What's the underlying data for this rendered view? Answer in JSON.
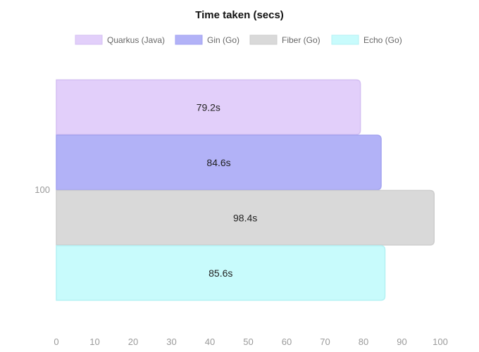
{
  "chart_data": {
    "type": "bar",
    "orientation": "horizontal",
    "title": "Time taken (secs)",
    "categories": [
      "100"
    ],
    "series": [
      {
        "name": "Quarkus (Java)",
        "values": [
          79.2
        ],
        "label": "79.2s",
        "fill": "#e2cffa",
        "stroke": "#d4bff2"
      },
      {
        "name": "Gin (Go)",
        "values": [
          84.6
        ],
        "label": "84.6s",
        "fill": "#b2b2f7",
        "stroke": "#a3a3f0"
      },
      {
        "name": "Fiber (Go)",
        "values": [
          98.4
        ],
        "label": "98.4s",
        "fill": "#d9d9d9",
        "stroke": "#cdcdcd"
      },
      {
        "name": "Echo (Go)",
        "values": [
          85.6
        ],
        "label": "85.6s",
        "fill": "#c8fbfc",
        "stroke": "#b3f1f3"
      }
    ],
    "x_ticks": [
      "0",
      "10",
      "20",
      "30",
      "40",
      "50",
      "60",
      "70",
      "80",
      "90",
      "100"
    ],
    "xlim": [
      0,
      100
    ],
    "grid": false,
    "legend_position": "top"
  }
}
